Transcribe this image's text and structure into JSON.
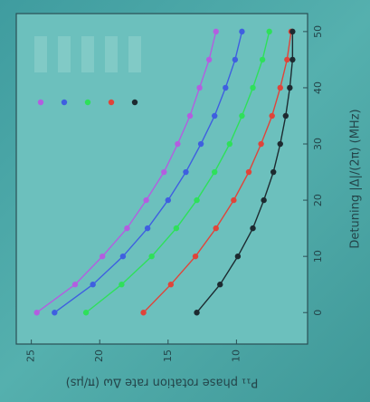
{
  "chart_data": {
    "type": "line",
    "x_label": "Detuning |Δ|/(2π) (MHz)",
    "y_label": "P₁₁ phase rotation rate Δω (π/μs)",
    "x": [
      0,
      5,
      10,
      15,
      20,
      25,
      30,
      35,
      40,
      45,
      50
    ],
    "series": [
      {
        "color": "#b35ee0",
        "values": [
          24.6,
          21.8,
          19.8,
          18.0,
          16.6,
          15.3,
          14.3,
          13.4,
          12.7,
          12.0,
          11.5
        ]
      },
      {
        "color": "#3f5fe0",
        "values": [
          23.3,
          20.5,
          18.3,
          16.5,
          15.0,
          13.7,
          12.6,
          11.6,
          10.8,
          10.1,
          9.6
        ]
      },
      {
        "color": "#2ee05a",
        "values": [
          21.0,
          18.4,
          16.2,
          14.4,
          12.9,
          11.6,
          10.5,
          9.6,
          8.8,
          8.1,
          7.6
        ]
      },
      {
        "color": "#e0443a",
        "values": [
          16.8,
          14.8,
          13.0,
          11.5,
          10.2,
          9.1,
          8.2,
          7.4,
          6.8,
          6.3,
          6.0
        ]
      },
      {
        "color": "#1d2a30",
        "values": [
          12.9,
          11.2,
          9.9,
          8.8,
          8.0,
          7.3,
          6.8,
          6.4,
          6.1,
          5.9,
          5.9
        ]
      }
    ],
    "xlim": [
      -5.6,
      53.2
    ],
    "xticks": [
      0,
      10,
      20,
      30,
      40,
      50
    ],
    "ylim": [
      4.8,
      26.1
    ],
    "yticks": [
      10,
      15,
      20,
      25
    ]
  }
}
